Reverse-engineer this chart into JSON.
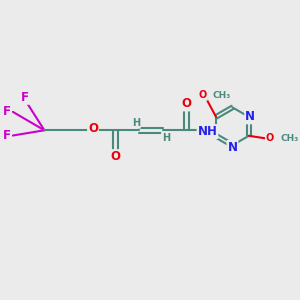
{
  "bg_color": "#ebebeb",
  "bond_color": "#4a8a7e",
  "bond_width": 1.5,
  "atom_colors": {
    "O": "#e8000d",
    "N": "#2222ee",
    "F": "#cc00cc",
    "H": "#4a8a7e",
    "C": "#4a8a7e"
  },
  "xlim": [
    -0.5,
    9.5
  ],
  "ylim": [
    -1.5,
    4.0
  ],
  "figsize": [
    3.0,
    3.0
  ],
  "dpi": 100
}
